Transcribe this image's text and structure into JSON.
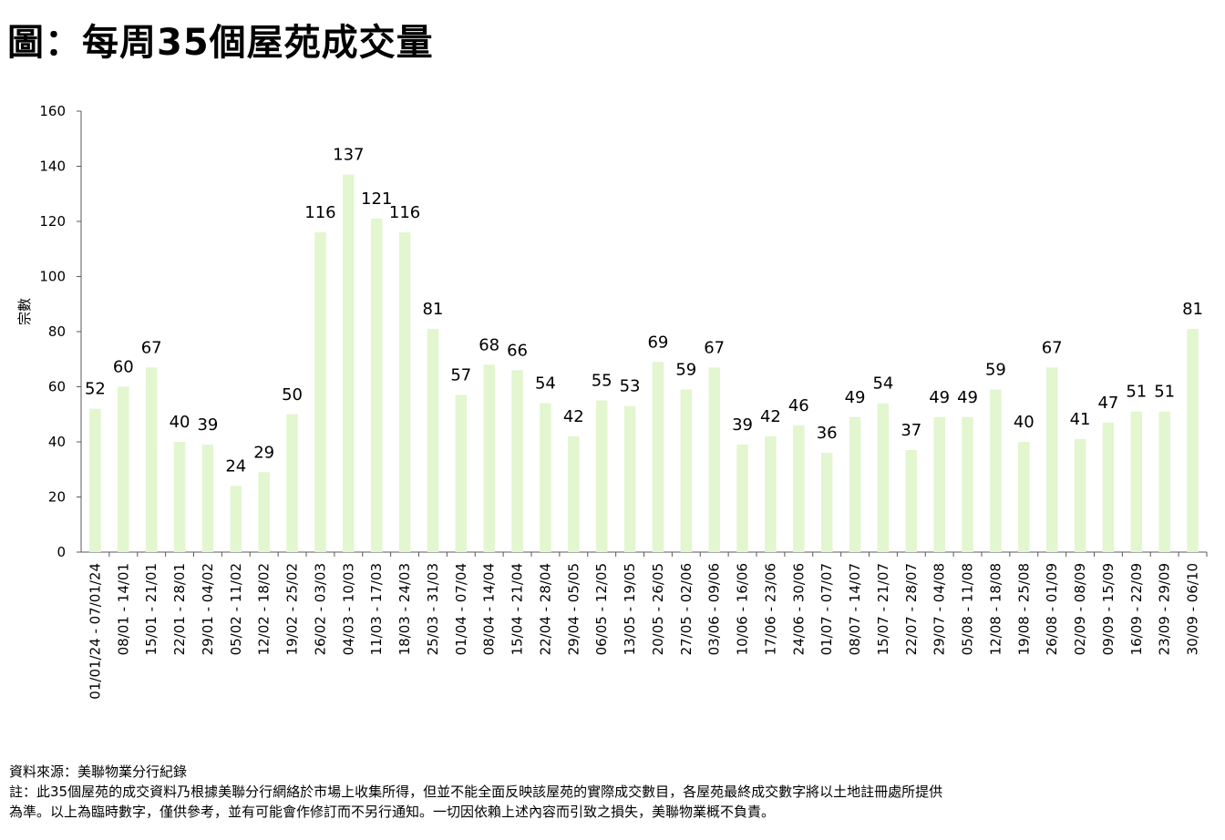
{
  "title": "圖：每周35個屋苑成交量",
  "footer": {
    "source": "資料來源：美聯物業分行紀錄",
    "note_line1": "註：此35個屋苑的成交資料乃根據美聯分行網絡於市場上收集所得，但並不能全面反映該屋苑的實際成交數目，各屋苑最終成交數字將以土地註冊處所提供",
    "note_line2": "為準。以上為臨時數字，僅供參考，並有可能會作修訂而不另行通知。一切因依賴上述內容而引致之損失，美聯物業概不負責。"
  },
  "chart_data": {
    "type": "bar",
    "title": "",
    "xlabel": "",
    "ylabel": "宗數",
    "ylim": [
      0,
      160
    ],
    "yticks": [
      0,
      20,
      40,
      60,
      80,
      100,
      120,
      140,
      160
    ],
    "grid": false,
    "bar_color": "#e2f6cf",
    "categories": [
      "01/01/24 - 07/01/24",
      "08/01 - 14/01",
      "15/01 - 21/01",
      "22/01 - 28/01",
      "29/01 - 04/02",
      "05/02 - 11/02",
      "12/02 - 18/02",
      "19/02 - 25/02",
      "26/02 - 03/03",
      "04/03 - 10/03",
      "11/03 - 17/03",
      "18/03 - 24/03",
      "25/03 - 31/03",
      "01/04 - 07/04",
      "08/04 - 14/04",
      "15/04 - 21/04",
      "22/04 - 28/04",
      "29/04 - 05/05",
      "06/05 - 12/05",
      "13/05 - 19/05",
      "20/05 - 26/05",
      "27/05 - 02/06",
      "03/06 - 09/06",
      "10/06 - 16/06",
      "17/06 - 23/06",
      "24/06 - 30/06",
      "01/07 - 07/07",
      "08/07 - 14/07",
      "15/07 - 21/07",
      "22/07 - 28/07",
      "29/07 - 04/08",
      "05/08 - 11/08",
      "12/08 - 18/08",
      "19/08 - 25/08",
      "26/08 - 01/09",
      "02/09 - 08/09",
      "09/09 - 15/09",
      "16/09 - 22/09",
      "23/09 - 29/09",
      "30/09 - 06/10"
    ],
    "values": [
      52,
      60,
      67,
      40,
      39,
      24,
      29,
      50,
      116,
      137,
      121,
      116,
      81,
      57,
      68,
      66,
      54,
      42,
      55,
      53,
      69,
      59,
      67,
      39,
      42,
      46,
      36,
      49,
      54,
      37,
      49,
      49,
      59,
      40,
      67,
      41,
      47,
      51,
      51,
      81
    ]
  }
}
